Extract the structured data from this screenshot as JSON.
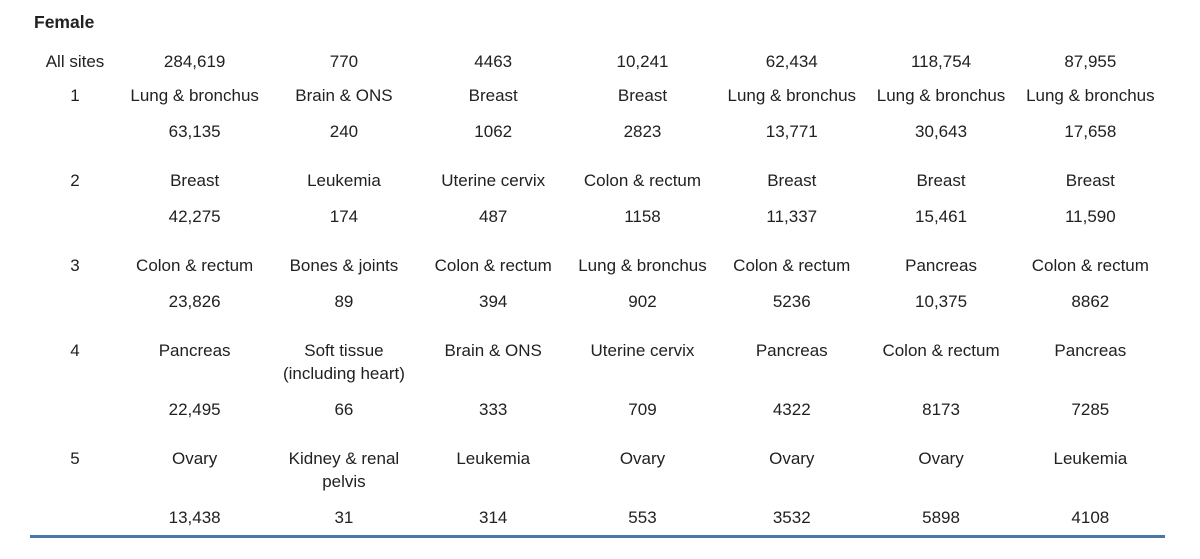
{
  "section_label": "Female",
  "colors": {
    "rule_blue": "#4878a8",
    "text": "#212121"
  },
  "table": {
    "label_column_header": "",
    "num_data_columns": 7,
    "all_sites": {
      "label": "All sites",
      "counts": [
        "284,619",
        "770",
        "4463",
        "10,241",
        "62,434",
        "118,754",
        "87,955"
      ]
    },
    "ranked_rows": [
      {
        "rank": "1",
        "sites": [
          "Lung & bronchus",
          "Brain & ONS",
          "Breast",
          "Breast",
          "Lung & bronchus",
          "Lung & bronchus",
          "Lung & bronchus"
        ],
        "counts": [
          "63,135",
          "240",
          "1062",
          "2823",
          "13,771",
          "30,643",
          "17,658"
        ]
      },
      {
        "rank": "2",
        "sites": [
          "Breast",
          "Leukemia",
          "Uterine cervix",
          "Colon & rectum",
          "Breast",
          "Breast",
          "Breast"
        ],
        "counts": [
          "42,275",
          "174",
          "487",
          "1158",
          "11,337",
          "15,461",
          "11,590"
        ]
      },
      {
        "rank": "3",
        "sites": [
          "Colon & rectum",
          "Bones & joints",
          "Colon & rectum",
          "Lung & bronchus",
          "Colon & rectum",
          "Pancreas",
          "Colon & rectum"
        ],
        "counts": [
          "23,826",
          "89",
          "394",
          "902",
          "5236",
          "10,375",
          "8862"
        ]
      },
      {
        "rank": "4",
        "sites": [
          "Pancreas",
          "Soft tissue (including heart)",
          "Brain & ONS",
          "Uterine cervix",
          "Pancreas",
          "Colon & rectum",
          "Pancreas"
        ],
        "counts": [
          "22,495",
          "66",
          "333",
          "709",
          "4322",
          "8173",
          "7285"
        ]
      },
      {
        "rank": "5",
        "sites": [
          "Ovary",
          "Kidney & renal pelvis",
          "Leukemia",
          "Ovary",
          "Ovary",
          "Ovary",
          "Leukemia"
        ],
        "counts": [
          "13,438",
          "31",
          "314",
          "553",
          "3532",
          "5898",
          "4108"
        ]
      }
    ]
  }
}
